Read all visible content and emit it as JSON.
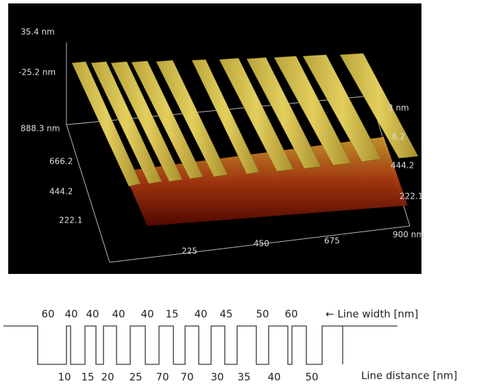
{
  "image": {
    "z_labels": [
      "35.4 nm",
      "-25.2 nm"
    ],
    "left_axis_labels": [
      "888.3 nm",
      "666.2",
      "444.2",
      "222.1"
    ],
    "front_axis_labels": [
      "225",
      "450",
      "675",
      "900 nm"
    ],
    "right_axis_labels": [
      "3 nm",
      "6.2",
      "444.2",
      "222.1"
    ]
  },
  "schematic": {
    "line_widths": [
      "60",
      "40",
      "40",
      "40",
      "40",
      "15",
      "40",
      "45",
      "50",
      "60"
    ],
    "line_width_label": "← Line width [nm]",
    "line_distances": [
      "10",
      "15",
      "20",
      "25",
      "70",
      "70",
      "30",
      "35",
      "40",
      "50"
    ],
    "line_distance_label": "Line distance [nm]"
  }
}
